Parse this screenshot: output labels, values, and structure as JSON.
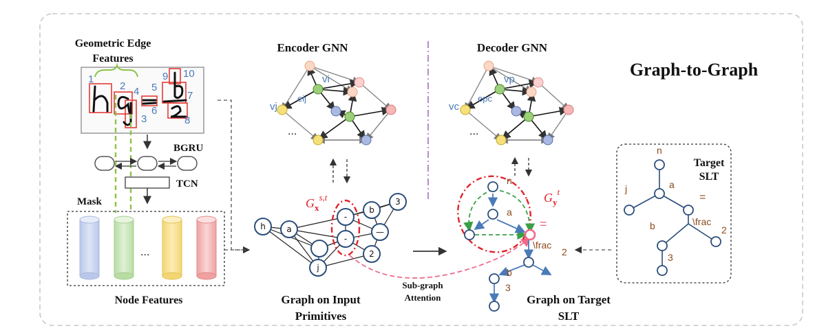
{
  "title": "Graph-to-Graph",
  "geometric_edge_features": [
    "Geometric Edge",
    "Features"
  ],
  "stroke_numbers": [
    "1",
    "2",
    "3",
    "4",
    "5",
    "6",
    "7",
    "8",
    "9",
    "10"
  ],
  "bgru": "BGRU",
  "tcn": "TCN",
  "mask": "Mask",
  "node_features": "Node Features",
  "ellipsis": "...",
  "encoder_gnn": "Encoder GNN",
  "decoder_gnn": "Decoder GNN",
  "encoder_labels": {
    "vi": "vi",
    "vj": "vj",
    "eij": "eij"
  },
  "decoder_labels": {
    "vp": "vp",
    "vc": "vc",
    "epc": "epc"
  },
  "input_graph_caption": [
    "Graph on Input",
    "Primitives"
  ],
  "target_graph_caption": [
    "Graph on Target",
    "SLT"
  ],
  "subgraph_attention": [
    "Sub-graph",
    "Attention"
  ],
  "gx_label": {
    "base": "G",
    "sub": "x",
    "sup": "s,t"
  },
  "gy_label": {
    "base": "G",
    "sub": "y",
    "sup": "t"
  },
  "slt_symbols": {
    "n": "n",
    "a": "a",
    "j": "j",
    "eq": "=",
    "frac": "\\frac",
    "two": "2",
    "b": "b",
    "three": "3"
  },
  "target_slt_title": [
    "Target",
    "SLT"
  ],
  "input_glyphs": [
    "h",
    "a",
    "-",
    "-",
    "b",
    "3",
    "—",
    "2",
    "j"
  ],
  "colors": {
    "red": "#e0222a",
    "green": "#4caf50",
    "blue_edge": "#4a7ab8",
    "pink": "#f06a8a",
    "brown": "#8a4a1c",
    "purple": "#9b59b6"
  }
}
